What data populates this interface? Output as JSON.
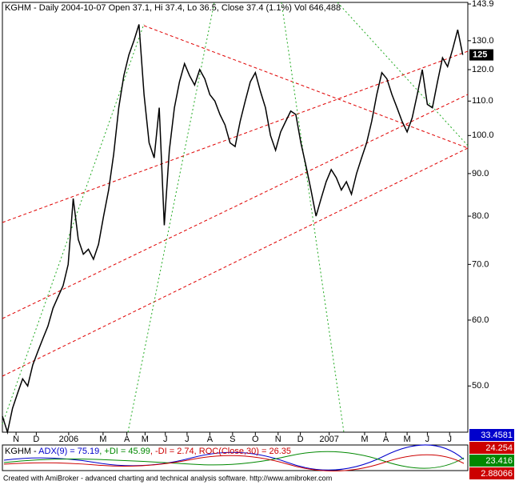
{
  "chart_data": {
    "type": "line",
    "title": "KGHM - Daily 2004-10-07 Open 37.1, Hi 37.4, Lo 36.5, Close 37.4 (1.1%) Vol 646,488",
    "series": [
      {
        "color": "#000000",
        "values": [
          46,
          44,
          47,
          49,
          51,
          50,
          53,
          55,
          57,
          59,
          62,
          64,
          66,
          70,
          84,
          75,
          72,
          73,
          71,
          74,
          80,
          86,
          95,
          108,
          118,
          125,
          130,
          136,
          112,
          98,
          94,
          108,
          78,
          96,
          108,
          116,
          122,
          118,
          115,
          120,
          117,
          112,
          110,
          106,
          103,
          98,
          97,
          104,
          110,
          116,
          119,
          113,
          108,
          100,
          96,
          101,
          104,
          107,
          106,
          98,
          92,
          86,
          80,
          84,
          88,
          91,
          89,
          86,
          88,
          85,
          90,
          94,
          98,
          104,
          112,
          119,
          117,
          112,
          108,
          104,
          101,
          105,
          112,
          120,
          109,
          108,
          116,
          124,
          121,
          127,
          134,
          125
        ]
      }
    ],
    "xlim": [
      0,
      92
    ],
    "xticks": [
      {
        "value": 2.7,
        "label": "N"
      },
      {
        "value": 6.7,
        "label": "D"
      },
      {
        "value": 13.1,
        "label": "2006"
      },
      {
        "value": 19.9,
        "label": "M"
      },
      {
        "value": 24.6,
        "label": "A"
      },
      {
        "value": 28.2,
        "label": "M"
      },
      {
        "value": 32.2,
        "label": "J"
      },
      {
        "value": 36.5,
        "label": "J"
      },
      {
        "value": 41,
        "label": "A"
      },
      {
        "value": 45.5,
        "label": "S"
      },
      {
        "value": 50,
        "label": "O"
      },
      {
        "value": 54.5,
        "label": "N"
      },
      {
        "value": 58.9,
        "label": "D"
      },
      {
        "value": 64.6,
        "label": "2007"
      },
      {
        "value": 71.6,
        "label": "M"
      },
      {
        "value": 75.8,
        "label": "A"
      },
      {
        "value": 80,
        "label": "M"
      },
      {
        "value": 84,
        "label": "J"
      },
      {
        "value": 88.4,
        "label": "J"
      }
    ],
    "ylim": [
      44,
      143.9
    ],
    "log_scale": true,
    "yticks": [
      143.9,
      {
        "value": 130,
        "label": "130.0"
      },
      {
        "value": 120,
        "label": "120.0"
      },
      {
        "value": 110,
        "label": "110.0"
      },
      {
        "value": 100,
        "label": "100.0"
      },
      {
        "value": 90,
        "label": "90.0"
      },
      {
        "value": 80,
        "label": "80.0"
      },
      {
        "value": 70,
        "label": "70.0"
      },
      {
        "value": 60,
        "label": "60.0"
      },
      {
        "value": 50,
        "label": "50.0"
      }
    ],
    "last_value": 125
  },
  "indicator": {
    "parts": [
      {
        "text": "KGHM - ",
        "color": "#000000"
      },
      {
        "text": "ADX(9) = 75.19",
        "color": "#0000cc"
      },
      {
        "text": ", +DI = 45.99",
        "color": "#008800"
      },
      {
        "text": ", -DI = 2.74",
        "color": "#cc0000"
      },
      {
        "text": ", ROC(Close,30) = 26.35",
        "color": "#cc0000"
      }
    ],
    "boxes": [
      {
        "value": 33.4581,
        "color": "#0000cc"
      },
      {
        "value": 24.254,
        "color": "#cc0000"
      },
      {
        "value": 23.416,
        "color": "#008800"
      },
      {
        "value": 2.88066,
        "color": "#cc0000"
      }
    ]
  },
  "footer": "Created with AmiBroker - advanced charting and technical analysis software. http://www.amibroker.com"
}
